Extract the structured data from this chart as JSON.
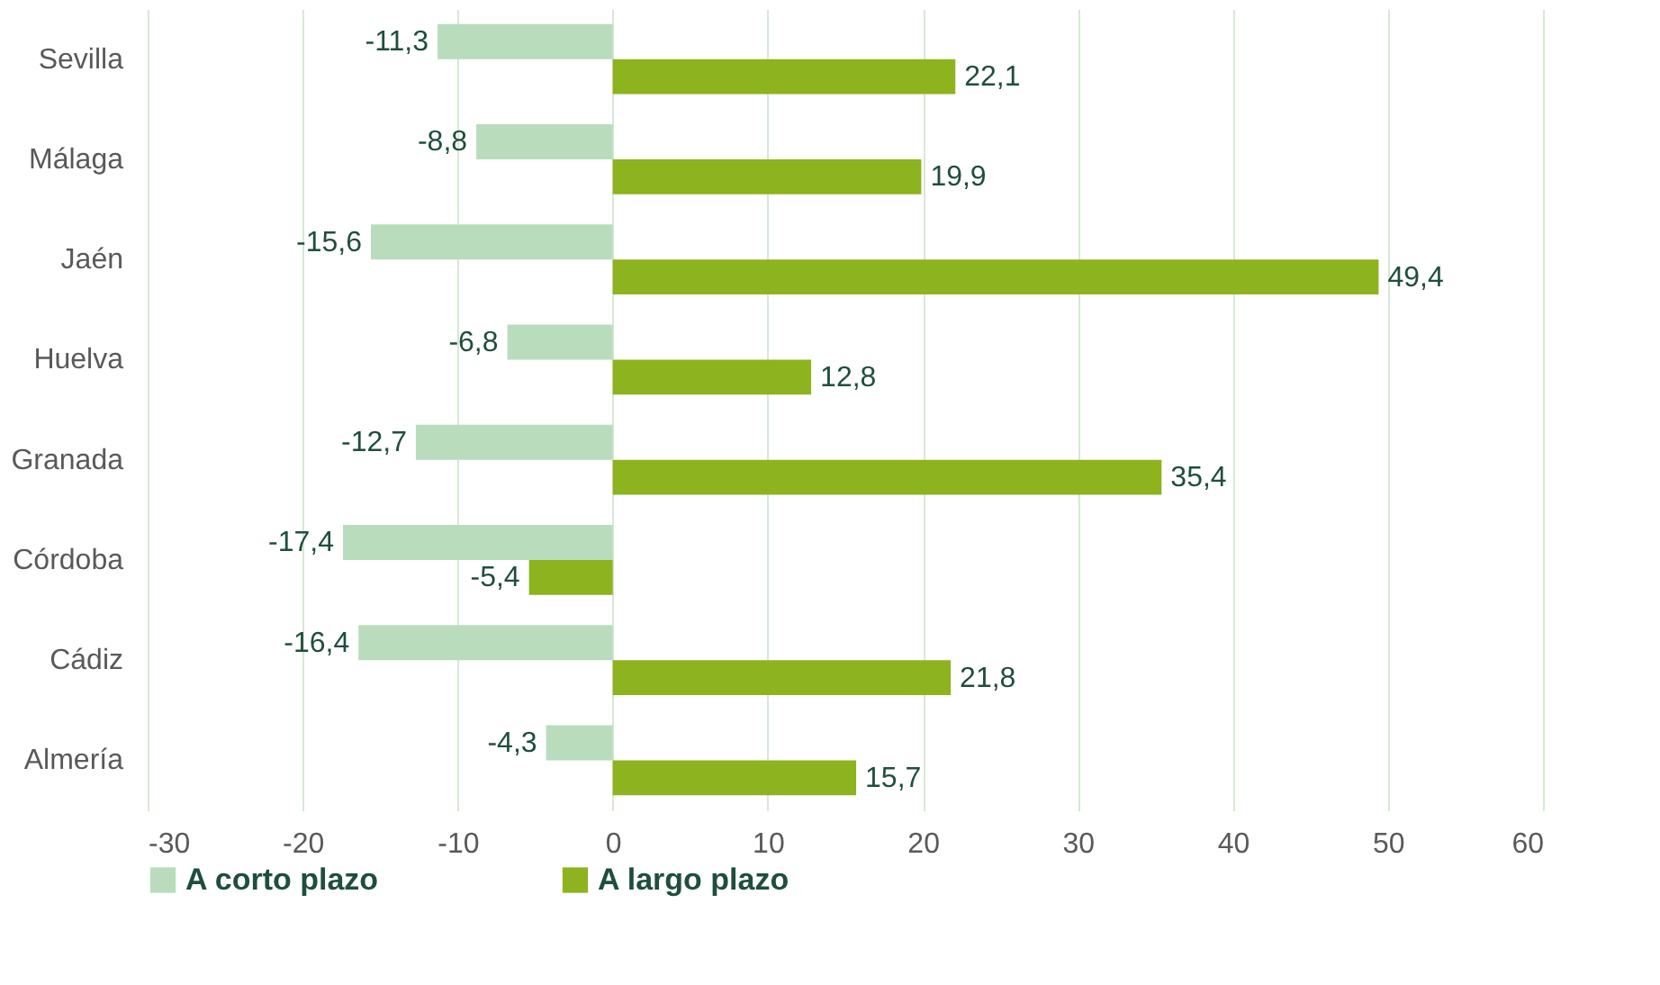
{
  "chart_data": {
    "type": "bar",
    "orientation": "horizontal",
    "categories": [
      "Sevilla",
      "Málaga",
      "Jaén",
      "Huelva",
      "Granada",
      "Córdoba",
      "Cádiz",
      "Almería"
    ],
    "series": [
      {
        "name": "A corto plazo",
        "color": "#b9dcbd",
        "values": [
          -11.3,
          -8.8,
          -15.6,
          -6.8,
          -12.7,
          -17.4,
          -16.4,
          -4.3
        ],
        "value_labels": [
          "-11,3",
          "-8,8",
          "-15,6",
          "-6,8",
          "-12,7",
          "-17,4",
          "-16,4",
          "-4,3"
        ]
      },
      {
        "name": "A largo plazo",
        "color": "#8db31e",
        "values": [
          22.1,
          19.9,
          49.4,
          12.8,
          35.4,
          -5.4,
          21.8,
          15.7
        ],
        "value_labels": [
          "22,1",
          "19,9",
          "49,4",
          "12,8",
          "35,4",
          "-5,4",
          "21,8",
          "15,7"
        ]
      }
    ],
    "xlim": [
      -30,
      60
    ],
    "xticks": [
      -30,
      -20,
      -10,
      0,
      10,
      20,
      30,
      40,
      50,
      60
    ],
    "grid": "x",
    "legend": "bottom"
  }
}
